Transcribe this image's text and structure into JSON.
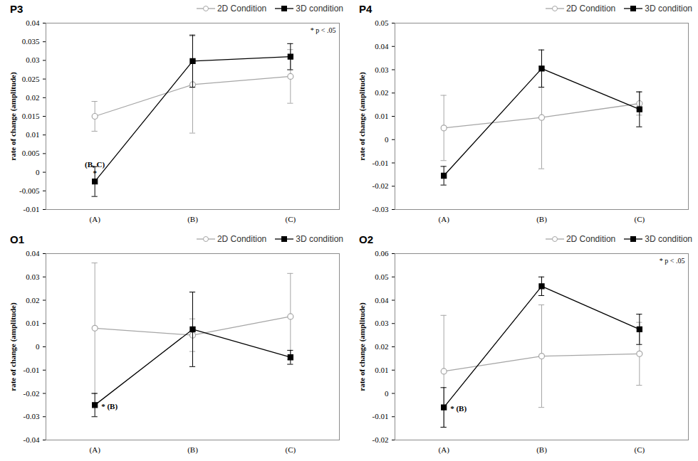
{
  "chart_data": [
    {
      "type": "line",
      "title": "P3",
      "y_label": "rate of change (amplitude)",
      "categories": [
        "(A)",
        "(B)",
        "(C)"
      ],
      "series": [
        {
          "name": "2D Condition",
          "color": "#a6a6a6",
          "marker": "open circle",
          "values": [
            0.015,
            0.0235,
            0.0257
          ],
          "errors": [
            0.004,
            0.013,
            0.0072
          ]
        },
        {
          "name": "3D condition",
          "color": "#000000",
          "marker": "square",
          "values": [
            -0.0025,
            0.0298,
            0.031
          ],
          "errors": [
            0.004,
            0.007,
            0.0035
          ]
        }
      ],
      "ylim": [
        -0.01,
        0.04
      ],
      "yticks": [
        -0.01,
        -0.005,
        0,
        0.005,
        0.01,
        0.015,
        0.02,
        0.025,
        0.03,
        0.035,
        0.04
      ],
      "legend": "top-right",
      "annotations": [
        {
          "text": "* p < .05"
        },
        {
          "text": "*",
          "series": "3D condition",
          "category": "(A)"
        },
        {
          "text": "(B, C)",
          "series": "3D condition",
          "category": "(A)"
        }
      ]
    },
    {
      "type": "line",
      "title": "P4",
      "y_label": "rate of change (amplitude)",
      "categories": [
        "(A)",
        "(B)",
        "(C)"
      ],
      "series": [
        {
          "name": "2D Condition",
          "color": "#a6a6a6",
          "marker": "open circle",
          "values": [
            0.005,
            0.0095,
            0.0155
          ],
          "errors": [
            0.014,
            0.022,
            0.005
          ]
        },
        {
          "name": "3D condition",
          "color": "#000000",
          "marker": "square",
          "values": [
            -0.0155,
            0.0305,
            0.013
          ],
          "errors": [
            0.004,
            0.008,
            0.0075
          ]
        }
      ],
      "ylim": [
        -0.03,
        0.05
      ],
      "yticks": [
        -0.03,
        -0.02,
        -0.01,
        0,
        0.01,
        0.02,
        0.03,
        0.04,
        0.05
      ],
      "legend": "top-right",
      "annotations": []
    },
    {
      "type": "line",
      "title": "O1",
      "y_label": "rate of change (amplitude)",
      "categories": [
        "(A)",
        "(B)",
        "(C)"
      ],
      "series": [
        {
          "name": "2D Condition",
          "color": "#a6a6a6",
          "marker": "open circle",
          "values": [
            0.008,
            0.005,
            0.013
          ],
          "errors": [
            0.028,
            0.007,
            0.0185
          ]
        },
        {
          "name": "3D condition",
          "color": "#000000",
          "marker": "square",
          "values": [
            -0.025,
            0.0075,
            -0.0045
          ],
          "errors": [
            0.005,
            0.016,
            0.003
          ]
        }
      ],
      "ylim": [
        -0.04,
        0.04
      ],
      "yticks": [
        -0.04,
        -0.03,
        -0.02,
        -0.01,
        0,
        0.01,
        0.02,
        0.03,
        0.04
      ],
      "legend": "top-right",
      "annotations": [
        {
          "text": "* (B)",
          "series": "3D condition",
          "category": "(A)"
        }
      ]
    },
    {
      "type": "line",
      "title": "O2",
      "y_label": "rate of change (amplitude)",
      "categories": [
        "(A)",
        "(B)",
        "(C)"
      ],
      "series": [
        {
          "name": "2D Condition",
          "color": "#a6a6a6",
          "marker": "open circle",
          "values": [
            0.0095,
            0.016,
            0.017
          ],
          "errors": [
            0.024,
            0.022,
            0.0135
          ]
        },
        {
          "name": "3D condition",
          "color": "#000000",
          "marker": "square",
          "values": [
            -0.006,
            0.046,
            0.0275
          ],
          "errors": [
            0.0085,
            0.004,
            0.0065
          ]
        }
      ],
      "ylim": [
        -0.02,
        0.06
      ],
      "yticks": [
        -0.02,
        -0.01,
        0,
        0.01,
        0.02,
        0.03,
        0.04,
        0.05,
        0.06
      ],
      "legend": "top-right",
      "annotations": [
        {
          "text": "* p < .05"
        },
        {
          "text": "* (B)",
          "series": "3D condition",
          "category": "(A)"
        }
      ]
    }
  ]
}
